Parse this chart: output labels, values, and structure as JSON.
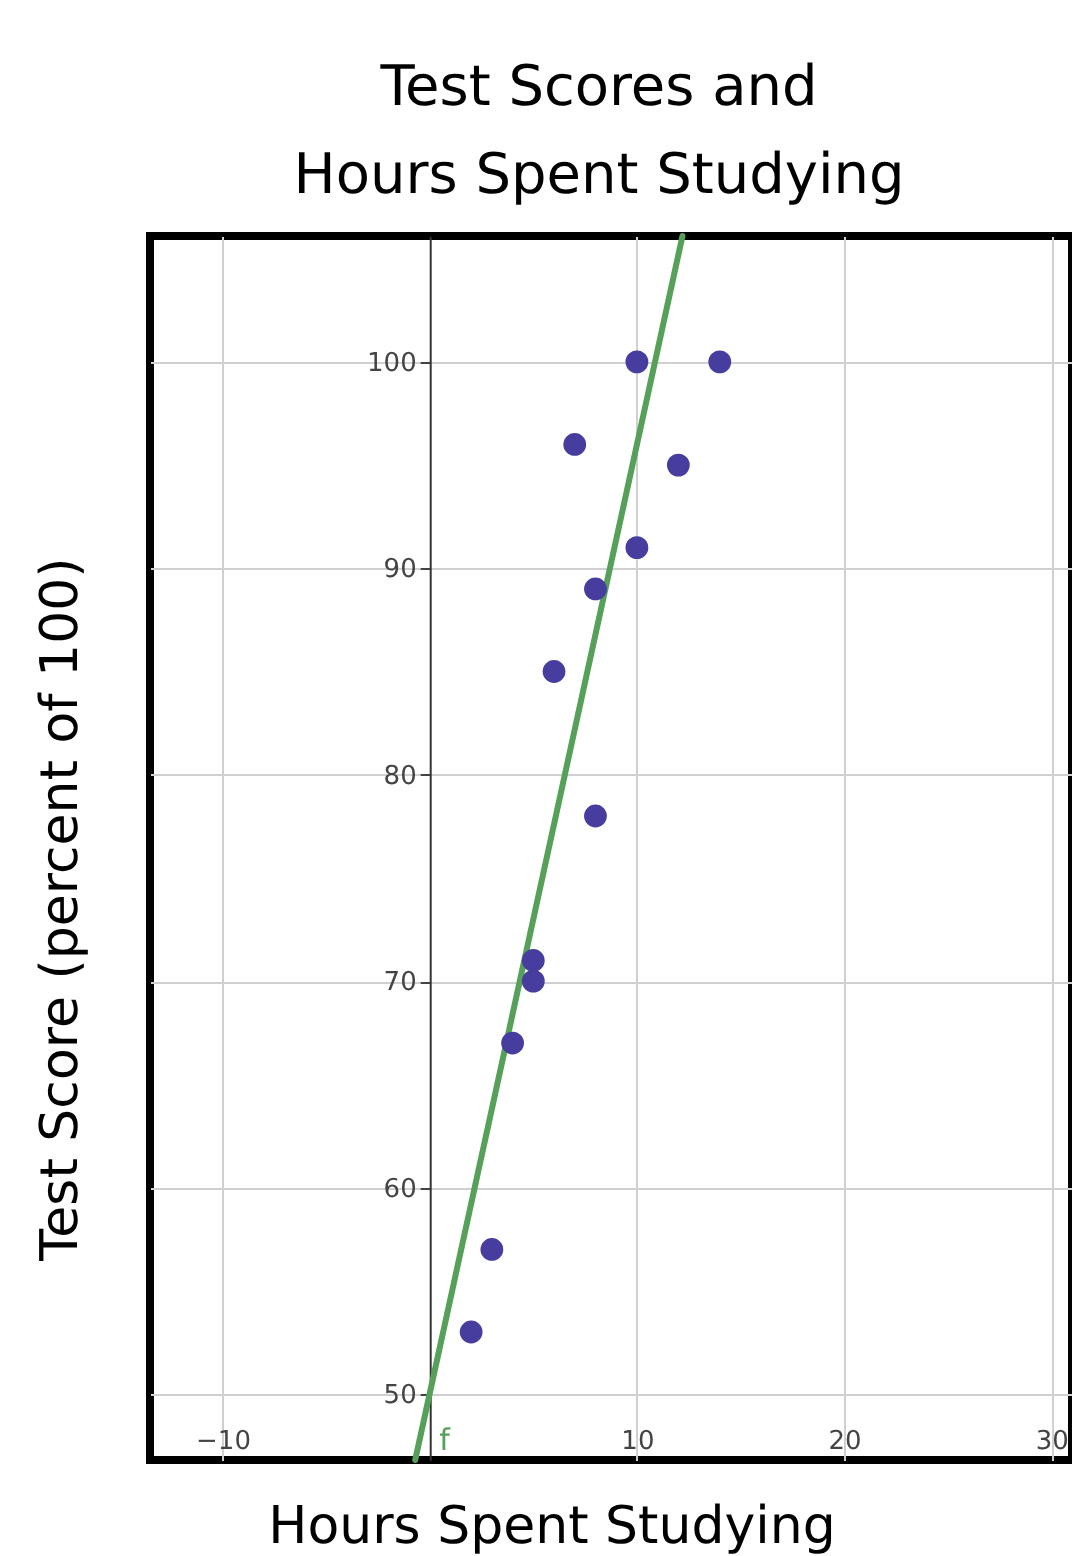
{
  "chart_data": {
    "type": "scatter",
    "title": "Test Scores and Hours Spent Studying",
    "xlabel": "Hours Spent Studying",
    "ylabel": "Test Score (percent of 100)",
    "xlim": [
      -13.5,
      31
    ],
    "ylim": [
      46.8,
      106.1
    ],
    "xticks": [
      {
        "value": -10,
        "label": "−10"
      },
      10,
      20,
      30
    ],
    "yticks": [
      50,
      60,
      70,
      80,
      90,
      100
    ],
    "grid": true,
    "marker": "circle",
    "series": [
      {
        "color": "#473d9e",
        "x": [
          2,
          3,
          4,
          5,
          5,
          6,
          7,
          8,
          8,
          10,
          10,
          12,
          14
        ],
        "values": [
          53,
          57,
          67,
          70,
          71,
          85,
          96,
          78,
          89,
          91,
          100,
          95,
          100
        ]
      },
      {
        "type": "line",
        "marker": "none",
        "color": "#56a05a",
        "x": [
          -0.7,
          12.2
        ],
        "values": [
          46.8,
          106.1
        ]
      }
    ],
    "annotations": [
      "f"
    ]
  }
}
